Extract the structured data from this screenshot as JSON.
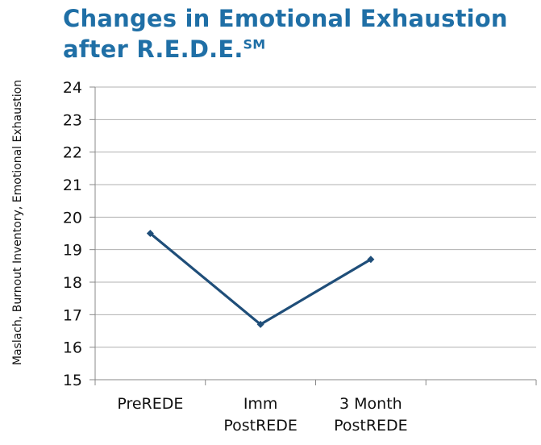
{
  "chart_data": {
    "type": "line",
    "title": "Changes in Emotional Exhaustion after R.E.D.E.",
    "title_line1": "Changes in Emotional Exhaustion",
    "title_line2": "after R.E.D.E.",
    "title_superscript": "SM",
    "xlabel": "",
    "ylabel": "Maslach, Burnout Inventory, Emotional Exhaustion",
    "categories": [
      "PreREDE",
      "Imm PostREDE",
      "3 Month PostREDE"
    ],
    "category_lines": [
      [
        "PreREDE"
      ],
      [
        "Imm",
        "PostREDE"
      ],
      [
        "3 Month",
        "PostREDE"
      ]
    ],
    "series": [
      {
        "values": [
          19.5,
          16.7,
          18.7
        ],
        "color": "#1f4e79"
      }
    ],
    "ylim": [
      15,
      24
    ],
    "yticks": [
      15,
      16,
      17,
      18,
      19,
      20,
      21,
      22,
      23,
      24
    ],
    "grid": true,
    "legend": "none",
    "colors": {
      "title": "#1f6fa6",
      "grid": "#b0b0b0",
      "axis": "#888888",
      "line": "#1f4e79"
    }
  }
}
